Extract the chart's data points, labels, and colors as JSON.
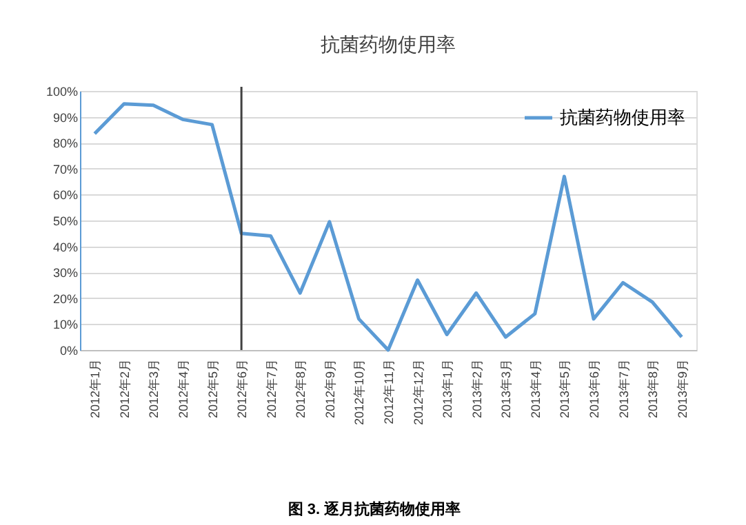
{
  "chart_data": {
    "type": "line",
    "title": "抗菌药物使用率",
    "categories": [
      "2012年1月",
      "2012年2月",
      "2012年3月",
      "2012年4月",
      "2012年5月",
      "2012年6月",
      "2012年7月",
      "2012年8月",
      "2012年9月",
      "2012年10月",
      "2012年11月",
      "2012年12月",
      "2013年1月",
      "2013年2月",
      "2013年3月",
      "2013年4月",
      "2013年5月",
      "2013年6月",
      "2013年7月",
      "2013年8月",
      "2013年9月"
    ],
    "series": [
      {
        "name": "抗菌药物使用率",
        "color": "#5b9bd5",
        "values": [
          83.5,
          95,
          94.5,
          89,
          87,
          45,
          44,
          22,
          49.5,
          12,
          0,
          27,
          6,
          22,
          5,
          14,
          67,
          12,
          26,
          18.5,
          5
        ]
      }
    ],
    "ylim": [
      0,
      100
    ],
    "yticks": [
      {
        "value": 0,
        "label": "0%"
      },
      {
        "value": 10,
        "label": "10%"
      },
      {
        "value": 20,
        "label": "20%"
      },
      {
        "value": 30,
        "label": "30%"
      },
      {
        "value": 40,
        "label": "40%"
      },
      {
        "value": 50,
        "label": "50%"
      },
      {
        "value": 60,
        "label": "60%"
      },
      {
        "value": 70,
        "label": "70%"
      },
      {
        "value": 80,
        "label": "80%"
      },
      {
        "value": 90,
        "label": "90%"
      },
      {
        "value": 100,
        "label": "100%"
      }
    ],
    "grid": "y",
    "legend": "top right",
    "ref_lines": [
      {
        "axis": "x",
        "value": "2012年6月",
        "color": "#404040"
      }
    ],
    "annotations": [
      "图 3. 逐月抗菌药物使用率"
    ]
  }
}
